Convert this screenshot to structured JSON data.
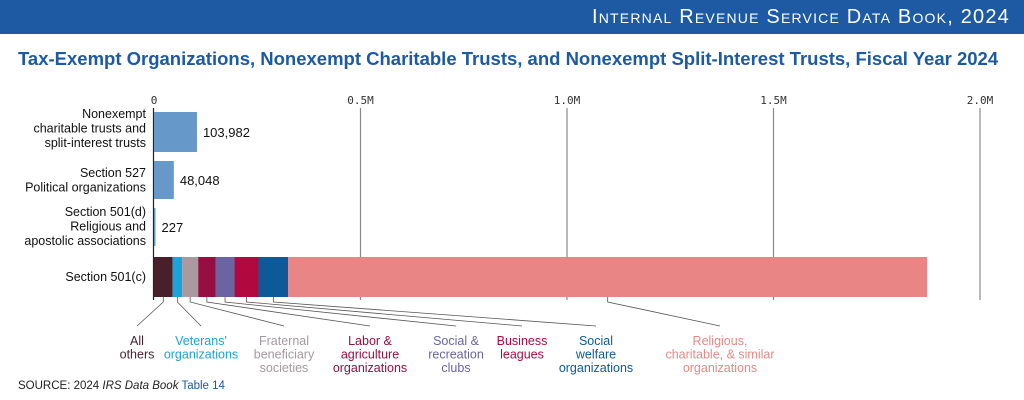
{
  "banner": {
    "text": "Internal Revenue Service Data Book, 2024"
  },
  "title": "Tax-Exempt Organizations, Nonexempt Charitable Trusts, and Nonexempt Split-Interest Trusts, Fiscal Year 2024",
  "source": {
    "prefix": "SOURCE: 2024 ",
    "publication": "IRS Data Book",
    "table": "Table 14"
  },
  "chart_data": {
    "type": "bar",
    "orientation": "horizontal",
    "x_ticks": [
      {
        "value": 0,
        "label": "0"
      },
      {
        "value": 500000,
        "label": "0.5M"
      },
      {
        "value": 1000000,
        "label": "1.0M"
      },
      {
        "value": 1500000,
        "label": "1.5M"
      },
      {
        "value": 2000000,
        "label": "2.0M"
      }
    ],
    "xlim": [
      0,
      2000000
    ],
    "grid": "vertical",
    "bars": [
      {
        "label": [
          "Nonexempt",
          "charitable trusts and",
          "split-interest trusts"
        ],
        "value": 103982,
        "value_label": "103,982",
        "color": "#6699c9"
      },
      {
        "label": [
          "Section 527",
          "Political organizations"
        ],
        "value": 48048,
        "value_label": "48,048",
        "color": "#6699c9"
      },
      {
        "label": [
          "Section 501(d)",
          "Religious and",
          "apostolic associations"
        ],
        "value": 227,
        "value_label": "227",
        "color": "#6699c9"
      }
    ],
    "stacked_bar": {
      "label": [
        "Section 501(c)"
      ],
      "segments": [
        {
          "name": [
            "All",
            "others"
          ],
          "value": 45000,
          "color": "#4a1f2c",
          "text_color": "#4a1f2c"
        },
        {
          "name": [
            "Veterans'",
            "organizations"
          ],
          "value": 23000,
          "color": "#1ba3dc",
          "text_color": "#1ba3dc"
        },
        {
          "name": [
            "Fraternal",
            "beneficiary",
            "societies"
          ],
          "value": 39000,
          "color": "#a89aa0",
          "text_color": "#a39aa0"
        },
        {
          "name": [
            "Labor &",
            "agriculture",
            "organizations"
          ],
          "value": 42000,
          "color": "#950f42",
          "text_color": "#950f42"
        },
        {
          "name": [
            "Social &",
            "recreation",
            "clubs"
          ],
          "value": 46000,
          "color": "#6a64a0",
          "text_color": "#6a64a0"
        },
        {
          "name": [
            "Business",
            "leagues"
          ],
          "value": 58000,
          "color": "#b0083f",
          "text_color": "#b0083f"
        },
        {
          "name": [
            "Social",
            "welfare",
            "organizations"
          ],
          "value": 72000,
          "color": "#0e5a98",
          "text_color": "#0e5a98"
        },
        {
          "name": [
            "Religious,",
            "charitable, & similar",
            "organizations"
          ],
          "value": 1547000,
          "color": "#ea8585",
          "text_color": "#e58a86"
        }
      ]
    }
  }
}
